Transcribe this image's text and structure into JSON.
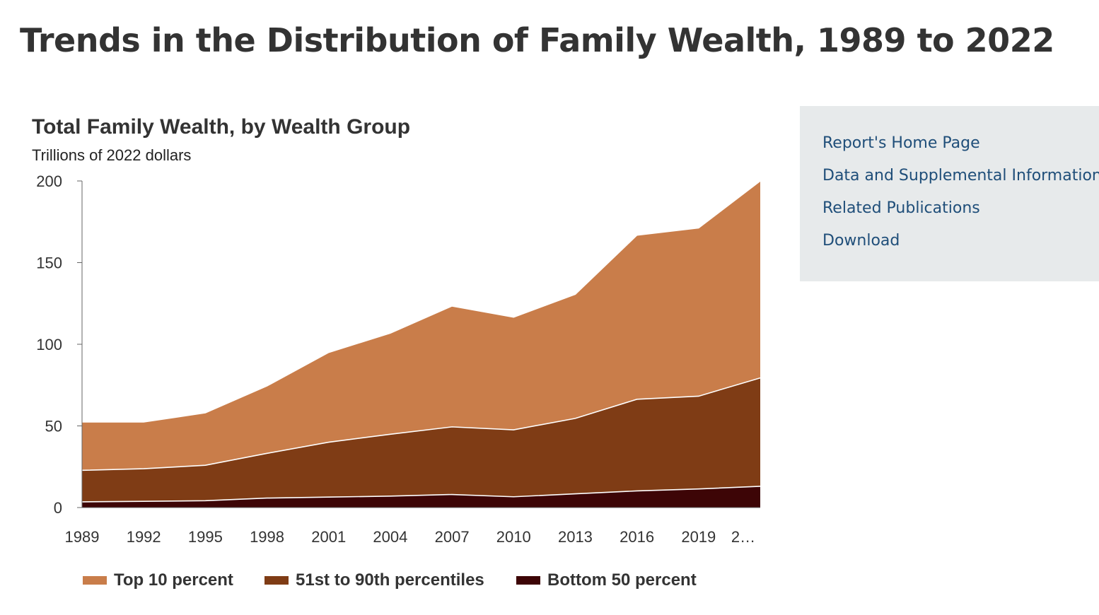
{
  "page": {
    "title": "Trends in the Distribution of Family Wealth, 1989 to 2022"
  },
  "side_panel": {
    "links": [
      "Report's Home Page",
      "Data and Supplemental Information",
      "Related Publications",
      "Download"
    ]
  },
  "colors": {
    "top10": "#c97d4a",
    "mid": "#7f3c15",
    "bottom": "#3d0506",
    "panel_bg": "#e7eaeb",
    "link": "#1f4e79"
  },
  "chart_data": {
    "type": "area",
    "stacked": true,
    "title": "Total Family Wealth, by Wealth Group",
    "subtitle": "Trillions of 2022 dollars",
    "xlabel": "",
    "ylabel": "Trillions of 2022 dollars",
    "ylim": [
      0,
      200
    ],
    "yticks": [
      0,
      50,
      100,
      150,
      200
    ],
    "x": [
      "1989",
      "1992",
      "1995",
      "1998",
      "2001",
      "2004",
      "2007",
      "2010",
      "2013",
      "2016",
      "2019",
      "2022"
    ],
    "x_tick_labels": [
      "1989",
      "1992",
      "1995",
      "1998",
      "2001",
      "2004",
      "2007",
      "2010",
      "2013",
      "2016",
      "2019",
      "2…"
    ],
    "series": [
      {
        "name": "Bottom 50 percent",
        "color": "#3d0506",
        "values": [
          3.5,
          3.8,
          4.2,
          5.8,
          6.4,
          7.0,
          8.0,
          6.6,
          8.4,
          10.2,
          11.4,
          13.0
        ]
      },
      {
        "name": "51st to 90th percentiles",
        "color": "#7f3c15",
        "values": [
          19.3,
          20.0,
          21.7,
          27.4,
          33.6,
          37.9,
          41.4,
          41.0,
          46.2,
          56.1,
          56.8,
          66.4
        ]
      },
      {
        "name": "Top 10 percent",
        "color": "#c97d4a",
        "values": [
          29.6,
          28.6,
          32.1,
          41.3,
          55.0,
          61.9,
          74.0,
          69.0,
          76.0,
          100.5,
          103.0,
          120.6
        ]
      }
    ],
    "legend": {
      "position": "bottom",
      "entries": [
        "Top 10 percent",
        "51st to 90th percentiles",
        "Bottom 50 percent"
      ]
    },
    "grid": false
  }
}
